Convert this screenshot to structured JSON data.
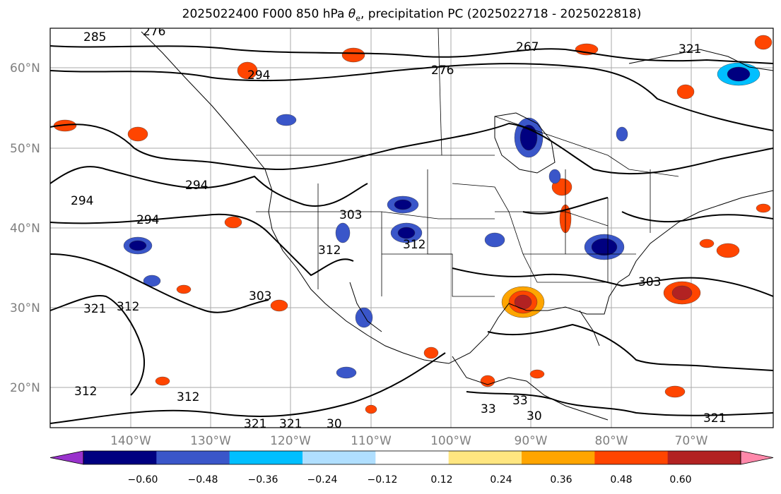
{
  "map": {
    "title_main": "2025022400 F000 850 hPa ",
    "title_theta": "θ",
    "title_sub": "e",
    "title_rest": ", precipitation PC (2025022718 - 2025022818)",
    "lat_labels": [
      "60°N",
      "50°N",
      "40°N",
      "30°N",
      "20°N"
    ],
    "lon_labels": [
      "140°W",
      "130°W",
      "120°W",
      "110°W",
      "100°W",
      "90°W",
      "80°W",
      "70°W"
    ],
    "contour_labels": [
      "285",
      "276",
      "267",
      "276",
      "294",
      "294",
      "294",
      "294",
      "303",
      "312",
      "312",
      "303",
      "312",
      "303",
      "321",
      "312",
      "312",
      "321",
      "321",
      "30",
      "321",
      "321",
      "33",
      "33",
      "30"
    ]
  },
  "colorbar": {
    "tick_labels": [
      "−0.60",
      "−0.48",
      "−0.36",
      "−0.24",
      "−0.12",
      "0.12",
      "0.24",
      "0.36",
      "0.48",
      "0.60"
    ],
    "colors": [
      "#9932cc",
      "#000080",
      "#3a56c9",
      "#00bfff",
      "#b0dfff",
      "#ffffff",
      "#ffe680",
      "#ffa500",
      "#ff4500",
      "#b22222",
      "#ff88aa"
    ]
  }
}
